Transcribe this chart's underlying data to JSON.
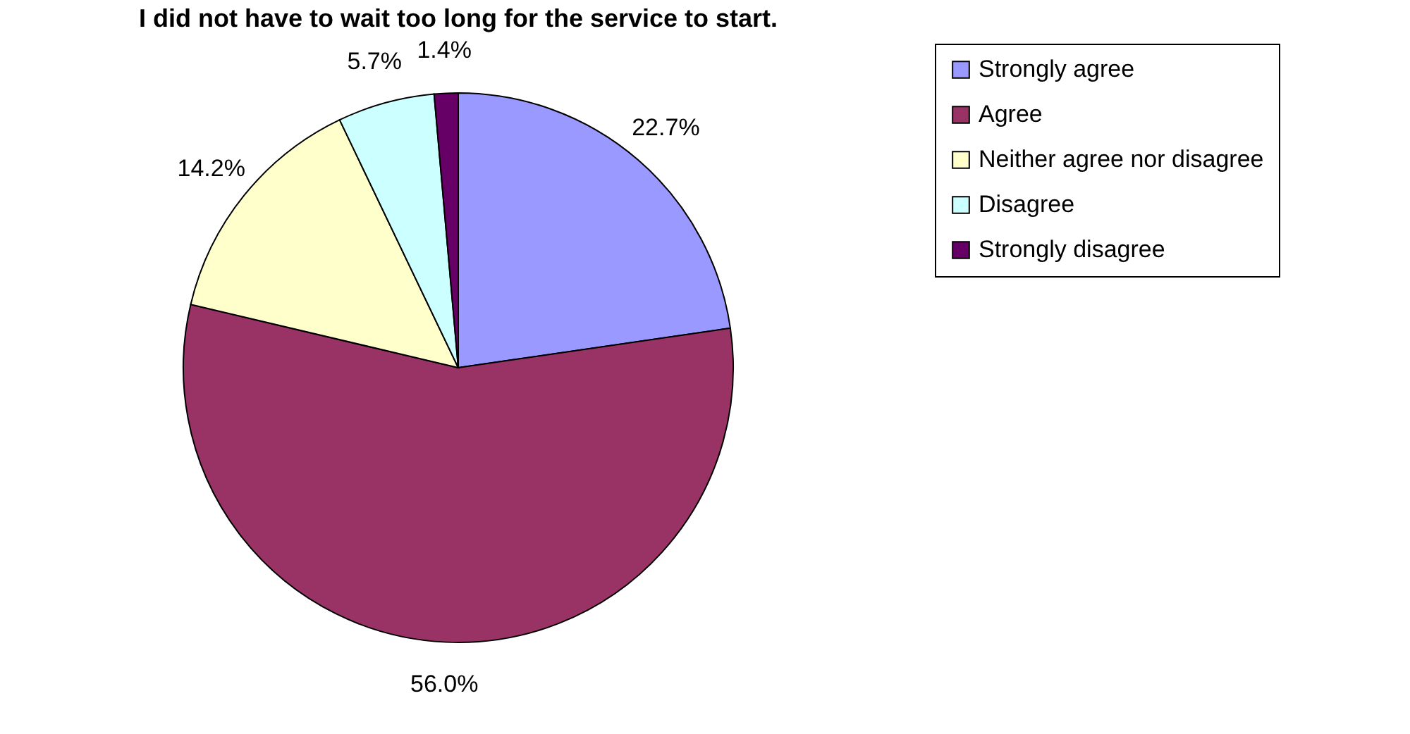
{
  "chart_data": {
    "type": "pie",
    "title": "I did not have to wait too long for the service to start.",
    "categories": [
      "Strongly agree",
      "Agree",
      "Neither agree nor disagree",
      "Disagree",
      "Strongly disagree"
    ],
    "values": [
      22.7,
      56.0,
      14.2,
      5.7,
      1.4
    ],
    "colors": [
      "#9999ff",
      "#993366",
      "#ffffcc",
      "#ccffff",
      "#660066"
    ],
    "value_labels": [
      "22.7%",
      "56.0%",
      "14.2%",
      "5.7%",
      "1.4%"
    ],
    "legend": "right"
  }
}
